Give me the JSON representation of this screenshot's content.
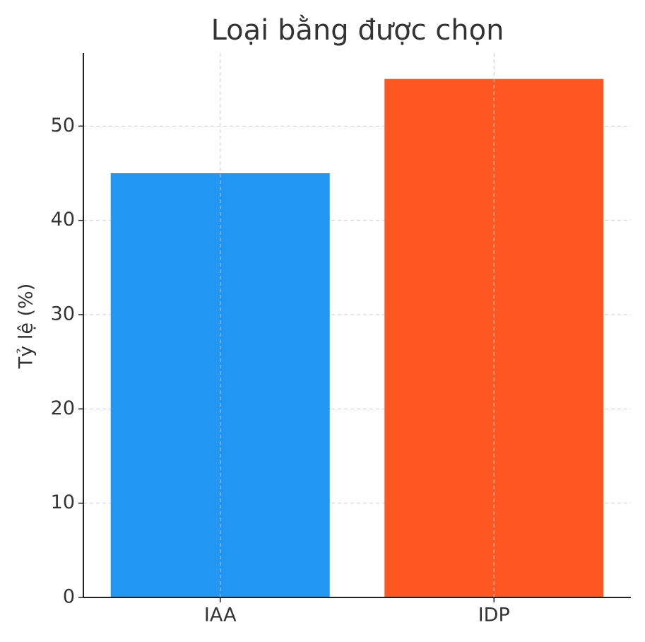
{
  "chart_data": {
    "type": "bar",
    "title": "Loại bằng được chọn",
    "ylabel": "Tỷ lệ (%)",
    "categories": [
      "IAA",
      "IDP"
    ],
    "values": [
      45,
      55
    ],
    "colors": [
      "#2196f3",
      "#ff5722"
    ],
    "ylim": [
      0,
      57.75
    ],
    "yticks": [
      0,
      10,
      20,
      30,
      40,
      50
    ],
    "grid": true
  }
}
